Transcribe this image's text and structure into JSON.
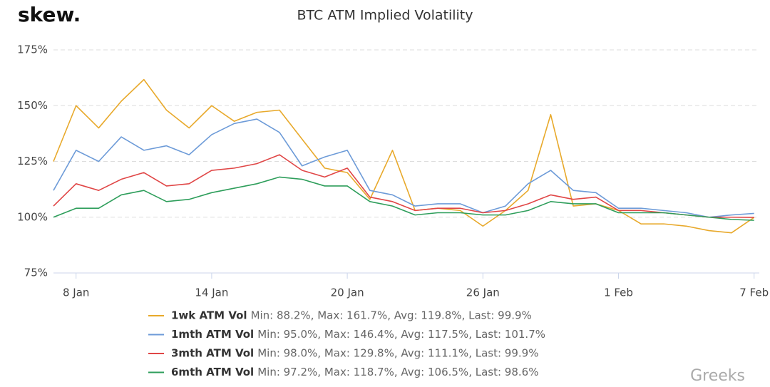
{
  "brand": "skew.",
  "watermark": "Greeks",
  "chart_data": {
    "type": "line",
    "title": "BTC ATM Implied Volatility",
    "categories": [
      null,
      "8 Jan",
      null,
      null,
      null,
      null,
      null,
      "14 Jan",
      null,
      null,
      null,
      null,
      null,
      "20 Jan",
      null,
      null,
      null,
      null,
      null,
      "26 Jan",
      null,
      null,
      null,
      null,
      null,
      "1 Feb",
      null,
      null,
      null,
      null,
      null,
      "7 Feb"
    ],
    "series": [
      {
        "name": "1wk ATM Vol",
        "stats": "Min: 88.2%, Max: 161.7%, Avg: 119.8%, Last: 99.9%",
        "color": "#e8a92b",
        "values": [
          125,
          150,
          140,
          152,
          161.7,
          148,
          140,
          150,
          143,
          147,
          148,
          135,
          122,
          120,
          108,
          130,
          103,
          104,
          103,
          96,
          103,
          112,
          146,
          105,
          106,
          103,
          97,
          97,
          96,
          94,
          93,
          99.9
        ]
      },
      {
        "name": "1mth ATM Vol",
        "stats": "Min: 95.0%, Max: 146.4%, Avg: 117.5%, Last: 101.7%",
        "color": "#6d9bd8",
        "values": [
          112,
          130,
          125,
          136,
          130,
          132,
          128,
          137,
          142,
          144,
          138,
          123,
          127,
          130,
          112,
          110,
          105,
          106,
          106,
          102,
          105,
          115,
          121,
          112,
          111,
          104,
          104,
          103,
          102,
          100,
          101,
          101.7
        ]
      },
      {
        "name": "3mth ATM Vol",
        "stats": "Min: 98.0%, Max: 129.8%, Avg: 111.1%, Last: 99.9%",
        "color": "#e04646",
        "values": [
          105,
          115,
          112,
          117,
          120,
          114,
          115,
          121,
          122,
          124,
          128,
          121,
          118,
          122,
          109,
          107,
          103,
          104,
          104,
          102,
          103,
          106,
          110,
          108,
          109,
          103,
          103,
          102,
          101,
          100,
          100,
          99.9
        ]
      },
      {
        "name": "6mth ATM Vol",
        "stats": "Min: 97.2%, Max: 118.7%, Avg: 106.5%, Last: 98.6%",
        "color": "#2e9e5b",
        "values": [
          100,
          104,
          104,
          110,
          112,
          107,
          108,
          111,
          113,
          115,
          118,
          117,
          114,
          114,
          107,
          105,
          101,
          102,
          102,
          101,
          101,
          103,
          107,
          106,
          106,
          102,
          102,
          102,
          101,
          100,
          99,
          98.6
        ]
      }
    ],
    "ylim": [
      75,
      175
    ],
    "yticks": [
      {
        "value": 75,
        "label": "75%"
      },
      {
        "value": 100,
        "label": "100%"
      },
      {
        "value": 125,
        "label": "125%"
      },
      {
        "value": 150,
        "label": "150%"
      },
      {
        "value": 175,
        "label": "175%"
      }
    ],
    "grid": true
  }
}
